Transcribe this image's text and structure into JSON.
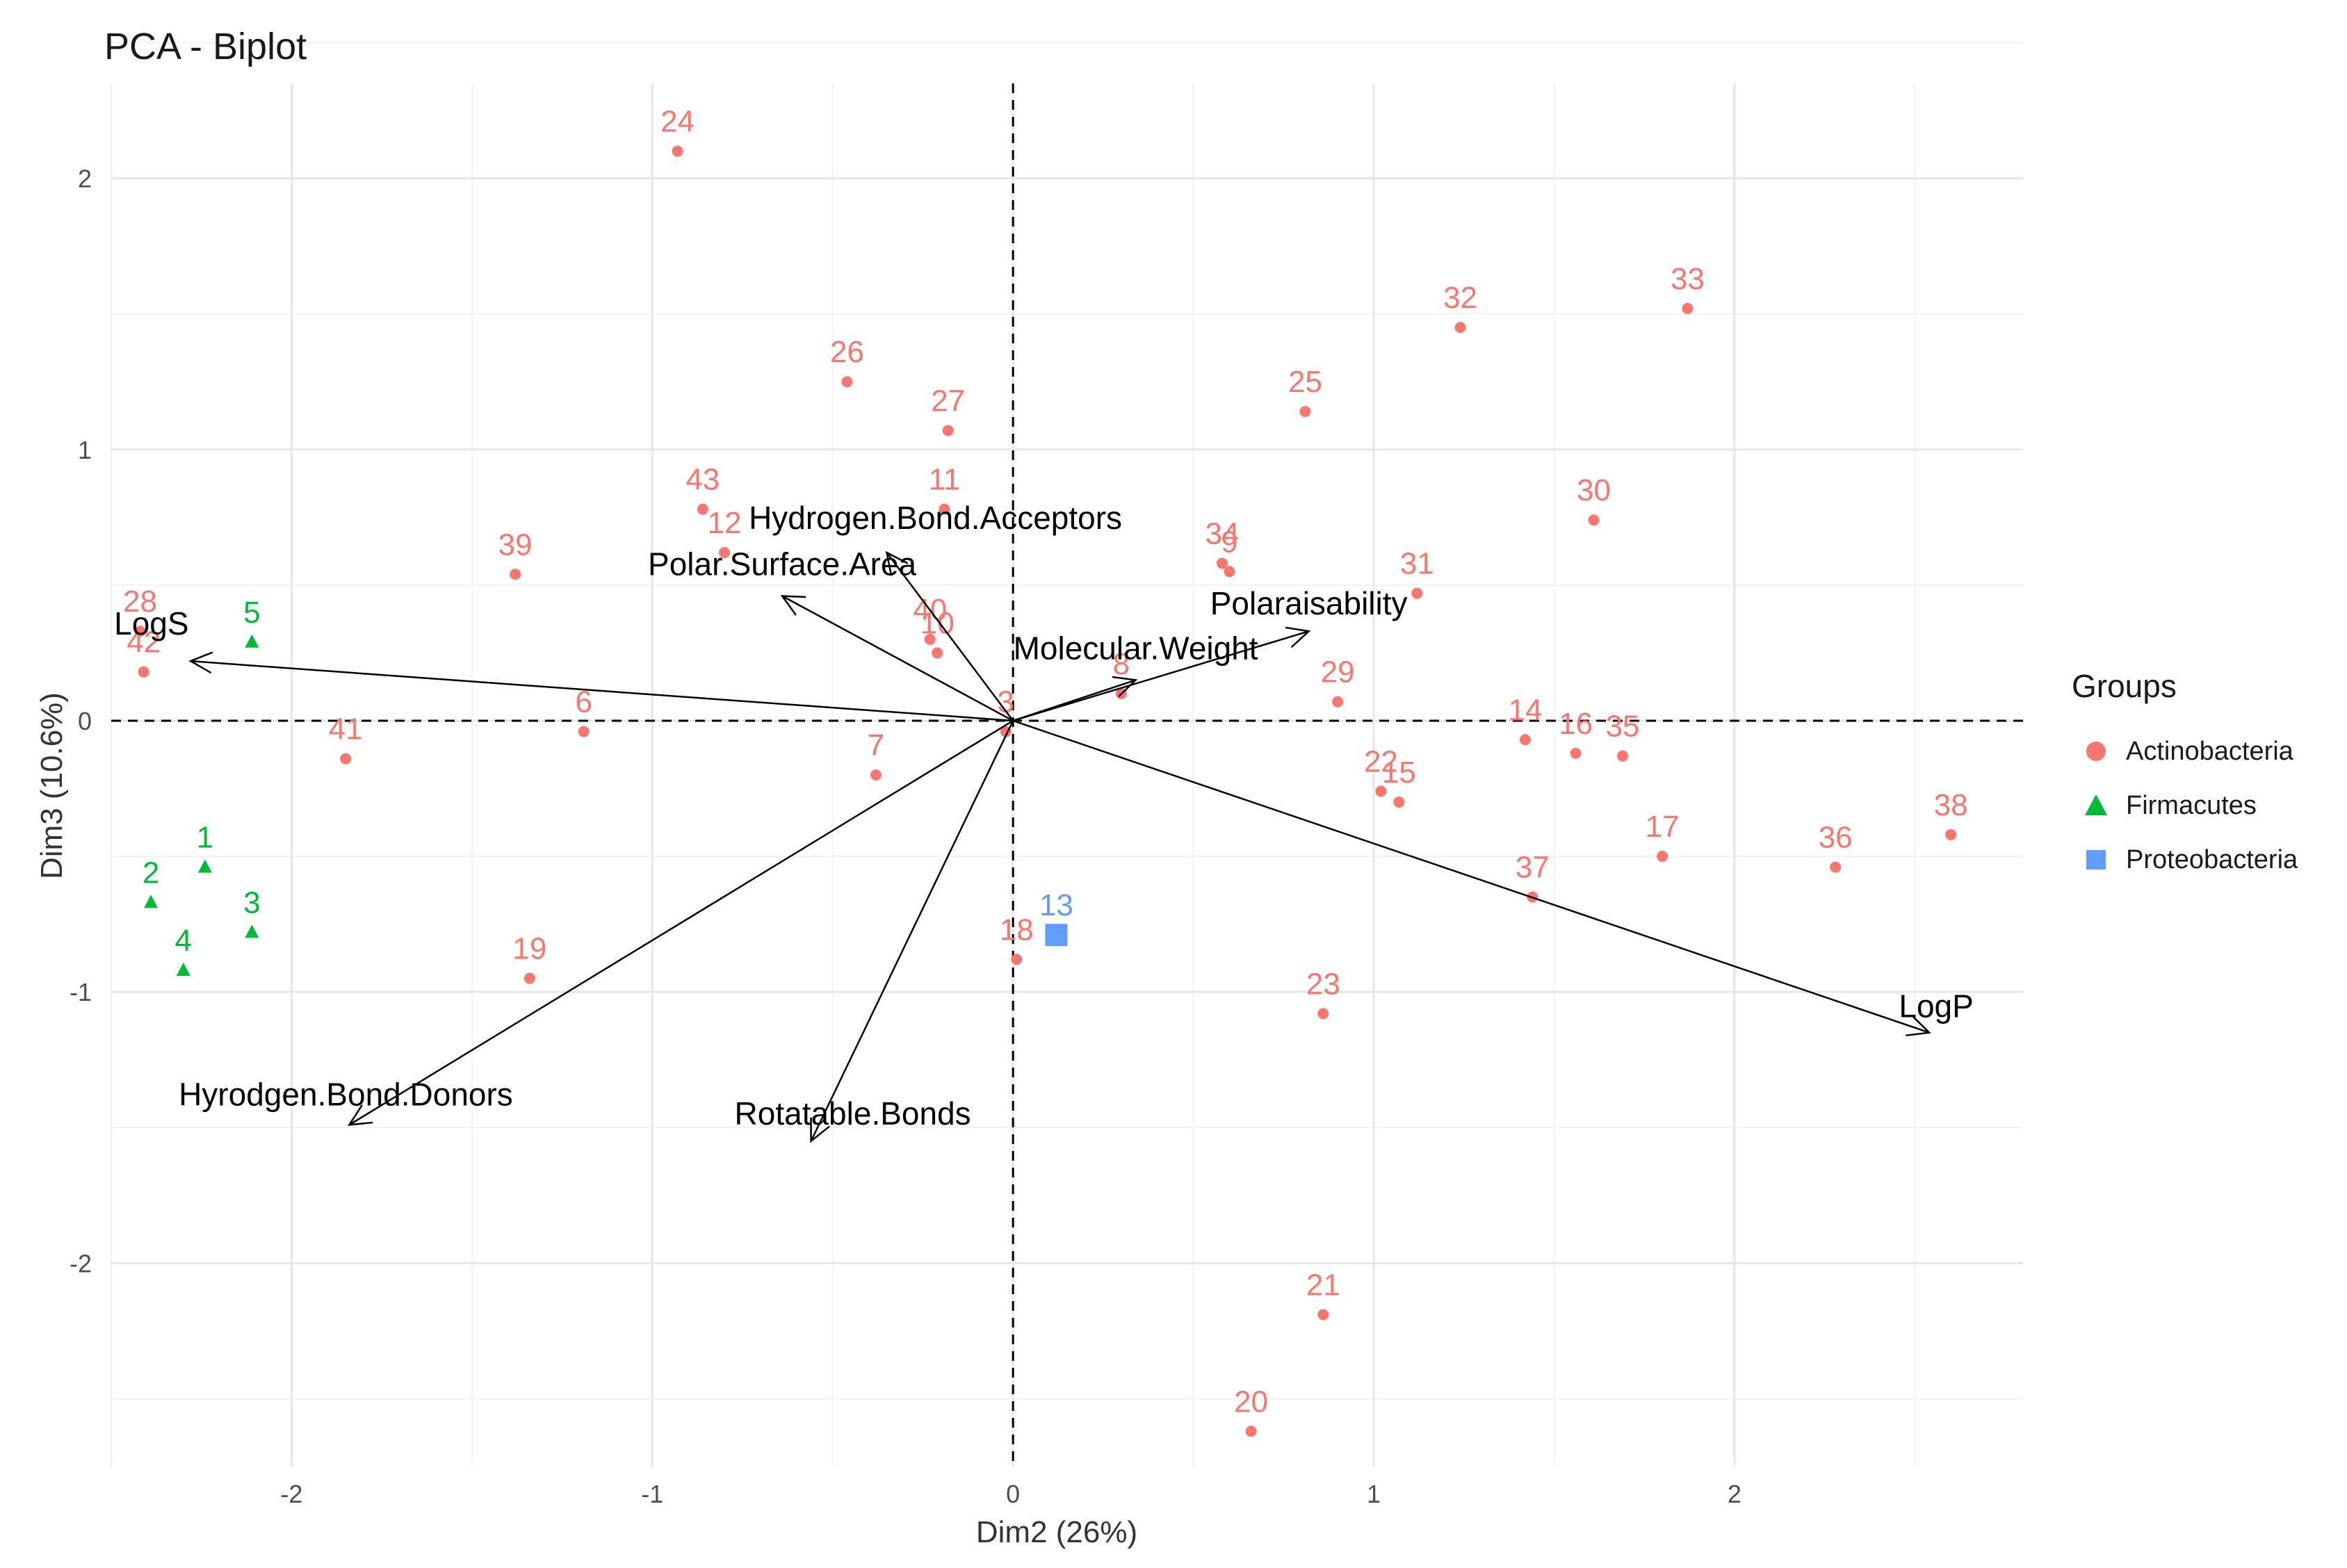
{
  "chart_data": {
    "type": "scatter",
    "title": "PCA - Biplot",
    "xlabel": "Dim2 (26%)",
    "ylabel": "Dim3 (10.6%)",
    "xlim": [
      -2.5,
      2.8
    ],
    "ylim": [
      -2.75,
      2.35
    ],
    "xticks": [
      -2,
      -1,
      0,
      1,
      2
    ],
    "yticks": [
      -2,
      -1,
      0,
      1,
      2
    ],
    "grid": true,
    "legend": {
      "title": "Groups",
      "position": "right",
      "entries": [
        {
          "name": "Actinobacteria",
          "color": "#F8766D",
          "shape": "circle"
        },
        {
          "name": "Firmacutes",
          "color": "#00BA38",
          "shape": "triangle"
        },
        {
          "name": "Proteobacteria",
          "color": "#619CFF",
          "shape": "square"
        }
      ]
    },
    "points": [
      {
        "label": "24",
        "x": -0.93,
        "y": 2.1,
        "group": "Actinobacteria"
      },
      {
        "label": "33",
        "x": 1.87,
        "y": 1.52,
        "group": "Actinobacteria"
      },
      {
        "label": "32",
        "x": 1.24,
        "y": 1.45,
        "group": "Actinobacteria"
      },
      {
        "label": "26",
        "x": -0.46,
        "y": 1.25,
        "group": "Actinobacteria"
      },
      {
        "label": "25",
        "x": 0.81,
        "y": 1.14,
        "group": "Actinobacteria"
      },
      {
        "label": "27",
        "x": -0.18,
        "y": 1.07,
        "group": "Actinobacteria"
      },
      {
        "label": "43",
        "x": -0.86,
        "y": 0.78,
        "group": "Actinobacteria"
      },
      {
        "label": "11",
        "x": -0.19,
        "y": 0.78,
        "group": "Actinobacteria"
      },
      {
        "label": "12",
        "x": -0.8,
        "y": 0.62,
        "group": "Actinobacteria"
      },
      {
        "label": "30",
        "x": 1.61,
        "y": 0.74,
        "group": "Actinobacteria"
      },
      {
        "label": "34",
        "x": 0.58,
        "y": 0.58,
        "group": "Actinobacteria"
      },
      {
        "label": "9",
        "x": 0.6,
        "y": 0.55,
        "group": "Actinobacteria"
      },
      {
        "label": "39",
        "x": -1.38,
        "y": 0.54,
        "group": "Actinobacteria"
      },
      {
        "label": "31",
        "x": 1.12,
        "y": 0.47,
        "group": "Actinobacteria"
      },
      {
        "label": "28",
        "x": -2.42,
        "y": 0.33,
        "group": "Actinobacteria"
      },
      {
        "label": "40",
        "x": -0.23,
        "y": 0.3,
        "group": "Actinobacteria"
      },
      {
        "label": "10",
        "x": -0.21,
        "y": 0.25,
        "group": "Actinobacteria"
      },
      {
        "label": "42",
        "x": -2.41,
        "y": 0.18,
        "group": "Actinobacteria"
      },
      {
        "label": "8",
        "x": 0.3,
        "y": 0.1,
        "group": "Actinobacteria"
      },
      {
        "label": "29",
        "x": 0.9,
        "y": 0.07,
        "group": "Actinobacteria"
      },
      {
        "label": "6",
        "x": -1.19,
        "y": -0.04,
        "group": "Actinobacteria"
      },
      {
        "label": "3",
        "x": -0.02,
        "y": -0.04,
        "group": "Actinobacteria"
      },
      {
        "label": "14",
        "x": 1.42,
        "y": -0.07,
        "group": "Actinobacteria"
      },
      {
        "label": "16",
        "x": 1.56,
        "y": -0.12,
        "group": "Actinobacteria"
      },
      {
        "label": "35",
        "x": 1.69,
        "y": -0.13,
        "group": "Actinobacteria"
      },
      {
        "label": "41",
        "x": -1.85,
        "y": -0.14,
        "group": "Actinobacteria"
      },
      {
        "label": "7",
        "x": -0.38,
        "y": -0.2,
        "group": "Actinobacteria"
      },
      {
        "label": "22",
        "x": 1.02,
        "y": -0.26,
        "group": "Actinobacteria"
      },
      {
        "label": "15",
        "x": 1.07,
        "y": -0.3,
        "group": "Actinobacteria"
      },
      {
        "label": "38",
        "x": 2.6,
        "y": -0.42,
        "group": "Actinobacteria"
      },
      {
        "label": "17",
        "x": 1.8,
        "y": -0.5,
        "group": "Actinobacteria"
      },
      {
        "label": "36",
        "x": 2.28,
        "y": -0.54,
        "group": "Actinobacteria"
      },
      {
        "label": "37",
        "x": 1.44,
        "y": -0.65,
        "group": "Actinobacteria"
      },
      {
        "label": "18",
        "x": 0.01,
        "y": -0.88,
        "group": "Actinobacteria"
      },
      {
        "label": "19",
        "x": -1.34,
        "y": -0.95,
        "group": "Actinobacteria"
      },
      {
        "label": "23",
        "x": 0.86,
        "y": -1.08,
        "group": "Actinobacteria"
      },
      {
        "label": "21",
        "x": 0.86,
        "y": -2.19,
        "group": "Actinobacteria"
      },
      {
        "label": "20",
        "x": 0.66,
        "y": -2.62,
        "group": "Actinobacteria"
      },
      {
        "label": "5",
        "x": -2.11,
        "y": 0.29,
        "group": "Firmacutes"
      },
      {
        "label": "1",
        "x": -2.24,
        "y": -0.54,
        "group": "Firmacutes"
      },
      {
        "label": "2",
        "x": -2.39,
        "y": -0.67,
        "group": "Firmacutes"
      },
      {
        "label": "3",
        "x": -2.11,
        "y": -0.78,
        "group": "Firmacutes"
      },
      {
        "label": "4",
        "x": -2.3,
        "y": -0.92,
        "group": "Firmacutes"
      },
      {
        "label": "13",
        "x": 0.12,
        "y": -0.79,
        "group": "Proteobacteria"
      }
    ],
    "variables": [
      {
        "name": "LogS",
        "x": -2.28,
        "y": 0.22
      },
      {
        "name": "Polar.Surface.Area",
        "x": -0.64,
        "y": 0.46
      },
      {
        "name": "Hydrogen.Bond.Acceptors",
        "x": -0.35,
        "y": 0.62
      },
      {
        "name": "Molecular.Weight",
        "x": 0.34,
        "y": 0.15
      },
      {
        "name": "Polaraisability",
        "x": 0.82,
        "y": 0.33
      },
      {
        "name": "LogP",
        "x": 2.54,
        "y": -1.15
      },
      {
        "name": "Rotatable.Bonds",
        "x": -0.56,
        "y": -1.55
      },
      {
        "name": "Hyrodgen.Bond.Donors",
        "x": -1.84,
        "y": -1.49
      }
    ]
  }
}
